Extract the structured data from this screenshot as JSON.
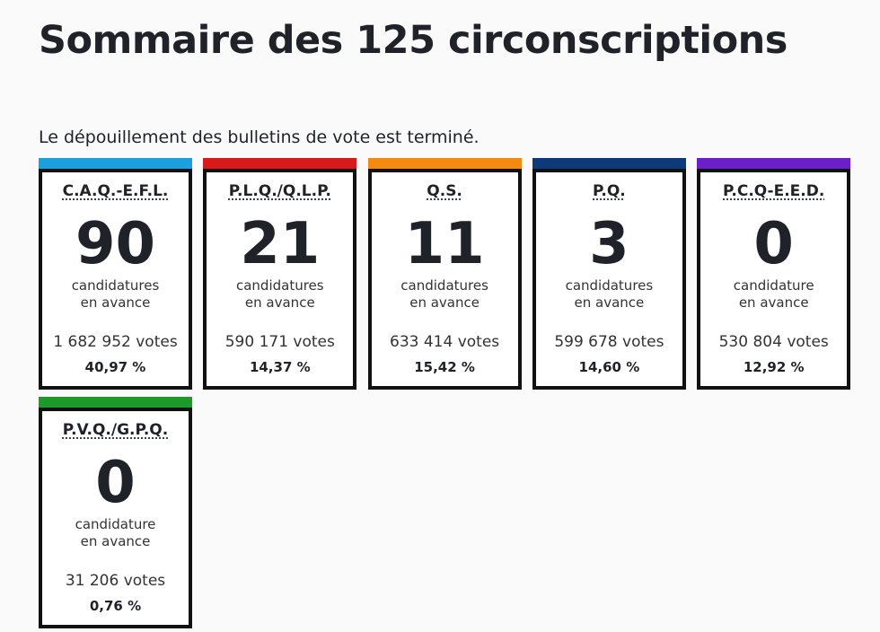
{
  "header": {
    "title": "Sommaire des 125 circonscriptions",
    "status": "Le dépouillement des bulletins de vote est terminé."
  },
  "cards": [
    {
      "party": "C.A.Q.-E.F.L.",
      "color": "#1aa0dd",
      "seats": "90",
      "label1": "candidatures",
      "label2": "en avance",
      "votes": "1 682 952 votes",
      "percent": "40,97 %"
    },
    {
      "party": "P.L.Q./Q.L.P.",
      "color": "#d91a1a",
      "seats": "21",
      "label1": "candidatures",
      "label2": "en avance",
      "votes": "590 171 votes",
      "percent": "14,37 %"
    },
    {
      "party": "Q.S.",
      "color": "#f28c0f",
      "seats": "11",
      "label1": "candidatures",
      "label2": "en avance",
      "votes": "633 414 votes",
      "percent": "15,42 %"
    },
    {
      "party": "P.Q.",
      "color": "#0e3a7a",
      "seats": "3",
      "label1": "candidatures",
      "label2": "en avance",
      "votes": "599 678 votes",
      "percent": "14,60 %"
    },
    {
      "party": "P.C.Q-E.E.D.",
      "color": "#6a1fc9",
      "seats": "0",
      "label1": "candidature",
      "label2": "en avance",
      "votes": "530 804 votes",
      "percent": "12,92 %"
    },
    {
      "party": "P.V.Q./G.P.Q.",
      "color": "#1d9a2a",
      "seats": "0",
      "label1": "candidature",
      "label2": "en avance",
      "votes": "31 206 votes",
      "percent": "0,76 %"
    }
  ]
}
